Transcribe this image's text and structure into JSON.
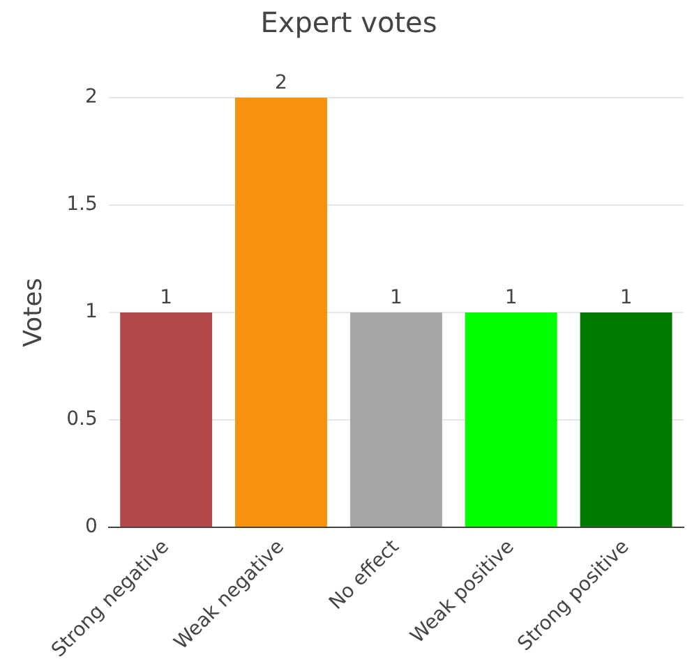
{
  "chart_data": {
    "type": "bar",
    "title": "Expert votes",
    "ylabel": "Votes",
    "categories": [
      "Strong negative",
      "Weak negative",
      "No effect",
      "Weak positive",
      "Strong positive"
    ],
    "values": [
      1,
      2,
      1,
      1,
      1
    ],
    "colors": [
      "#b5484a",
      "#f7920f",
      "#a6a6a6",
      "#00ff00",
      "#007a00"
    ],
    "ylim": [
      0,
      2
    ],
    "yticks": [
      0,
      0.5,
      1,
      1.5,
      2
    ],
    "grid": "y",
    "data_labels": true,
    "legend": false
  }
}
